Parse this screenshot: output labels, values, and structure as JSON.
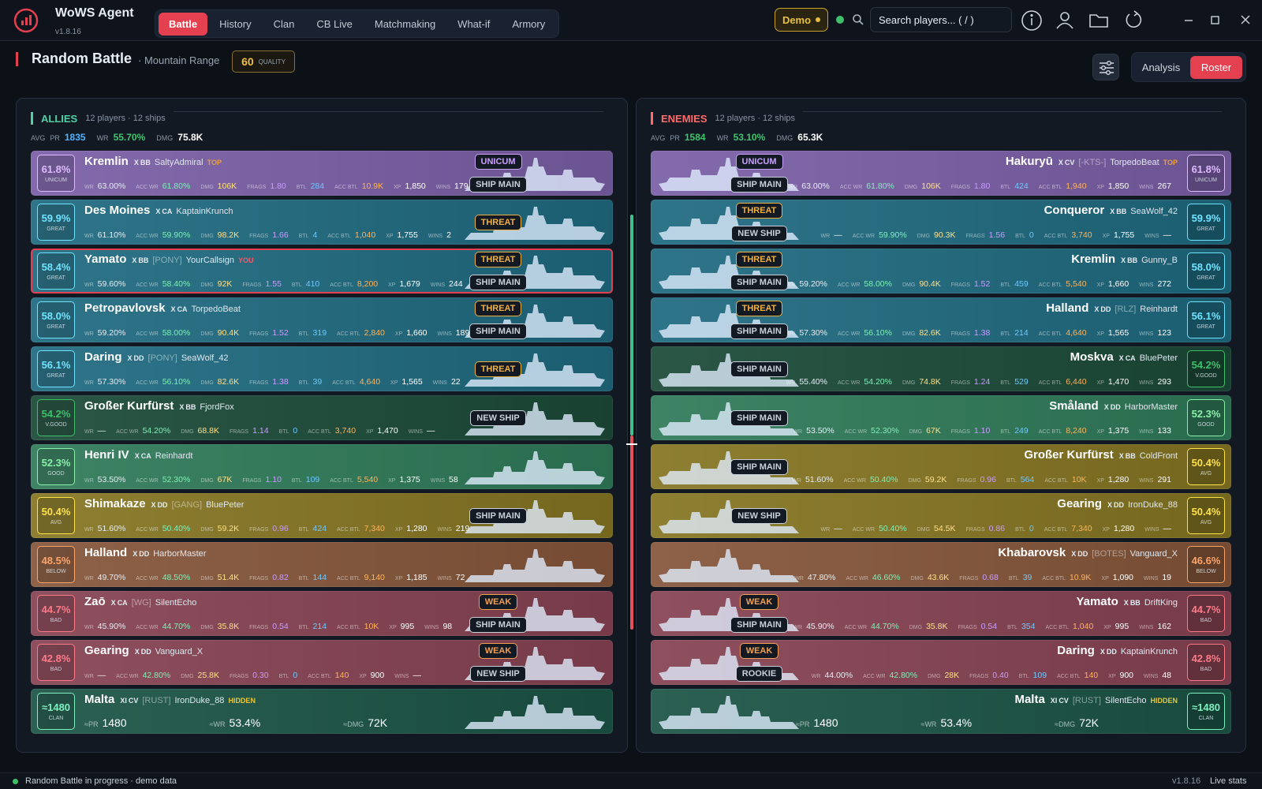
{
  "app": {
    "title": "WoWS Agent",
    "version": "v1.8.16",
    "tabs": [
      "Battle",
      "History",
      "Clan",
      "CB Live",
      "Matchmaking",
      "What-if",
      "Armory"
    ],
    "active_tab": 0,
    "demo": "Demo",
    "search_placeholder": "Search players... ( / )"
  },
  "battle": {
    "mode": "Random Battle",
    "map": "· Mountain Range",
    "quality": 60,
    "quality_label": "QUALITY",
    "views": [
      "Analysis",
      "Roster"
    ],
    "active_view": 1
  },
  "stat_labels": [
    "WR",
    "ACC WR",
    "DMG",
    "FRAGS",
    "BTL",
    "ACC BTL",
    "XP",
    "WINS"
  ],
  "stat_colors": [
    "#e6edf5",
    "#7ff0b8",
    "#ffe08a",
    "#c99cff",
    "#6fc8ff",
    "#ffb35c",
    "#ffffff",
    "#ffffff"
  ],
  "allies": {
    "title": "ALLIES",
    "summary": "12 players · 12 ships",
    "accent": "#4fd1a5",
    "avg_label": "AVG",
    "avg": [
      {
        "label": "PR",
        "value": "1835",
        "color": "#4fb3ff"
      },
      {
        "label": "WR",
        "value": "55.70%",
        "color": "#3fc46f"
      },
      {
        "label": "DMG",
        "value": "75.8K",
        "color": "#ffffff"
      }
    ],
    "rows": [
      {
        "rating": "61.8%",
        "rating_label": "UNICUM",
        "color": "#7a5fa6",
        "accent": "#dcbcff",
        "ship": "Kremlin",
        "tier": "X",
        "class": "BB",
        "player": "SaltyAdmiral",
        "tag": "TOP",
        "tag_color": "#f0a030",
        "stats": [
          "63.00%",
          "61.80%",
          "106K",
          "1.80",
          "284",
          "10.9K",
          "1,850",
          "179"
        ],
        "badges": [
          {
            "text": "UNICUM",
            "color": "#c9a0ff"
          },
          {
            "text": "SHIP MAIN",
            "color": "#c8d0da"
          }
        ]
      },
      {
        "rating": "59.9%",
        "rating_label": "GREAT",
        "color": "#1f6a80",
        "accent": "#6fe3ff",
        "ship": "Des Moines",
        "tier": "X",
        "class": "CA",
        "player": "KaptainKrunch",
        "stats": [
          "61.10%",
          "59.90%",
          "98.2K",
          "1.66",
          "4",
          "1,040",
          "1,755",
          "2"
        ],
        "badges": [
          {
            "text": "THREAT",
            "color": "#f0b040"
          }
        ]
      },
      {
        "rating": "58.4%",
        "rating_label": "GREAT",
        "color": "#1f6a80",
        "accent": "#6fe3ff",
        "ship": "Yamato",
        "tier": "X",
        "class": "BB",
        "clan": "[PONY]",
        "player": "YourCallsign",
        "tag": "YOU",
        "tag_color": "#ff5566",
        "selected": true,
        "stats": [
          "59.60%",
          "58.40%",
          "92K",
          "1.55",
          "410",
          "8,200",
          "1,679",
          "244"
        ],
        "badges": [
          {
            "text": "THREAT",
            "color": "#f0b040"
          },
          {
            "text": "SHIP MAIN",
            "color": "#c8d0da"
          }
        ]
      },
      {
        "rating": "58.0%",
        "rating_label": "GREAT",
        "color": "#1f6a80",
        "accent": "#6fe3ff",
        "ship": "Petropavlovsk",
        "tier": "X",
        "class": "CA",
        "player": "TorpedoBeat",
        "stats": [
          "59.20%",
          "58.00%",
          "90.4K",
          "1.52",
          "319",
          "2,840",
          "1,660",
          "189"
        ],
        "badges": [
          {
            "text": "THREAT",
            "color": "#f0b040"
          },
          {
            "text": "SHIP MAIN",
            "color": "#c8d0da"
          }
        ]
      },
      {
        "rating": "56.1%",
        "rating_label": "GREAT",
        "color": "#1f6a80",
        "accent": "#6fe3ff",
        "ship": "Daring",
        "tier": "X",
        "class": "DD",
        "clan": "[PONY]",
        "player": "SeaWolf_42",
        "stats": [
          "57.30%",
          "56.10%",
          "82.6K",
          "1.38",
          "39",
          "4,640",
          "1,565",
          "22"
        ],
        "badges": [
          {
            "text": "THREAT",
            "color": "#f0b040"
          }
        ]
      },
      {
        "rating": "54.2%",
        "rating_label": "V.GOOD",
        "color": "#1b4a38",
        "accent": "#3fbf6a",
        "ship": "Großer Kurfürst",
        "tier": "X",
        "class": "BB",
        "player": "FjordFox",
        "stats": [
          "—",
          "54.20%",
          "68.8K",
          "1.14",
          "0",
          "3,740",
          "1,470",
          "—"
        ],
        "badges": [
          {
            "text": "NEW SHIP",
            "color": "#c8d0da"
          }
        ]
      },
      {
        "rating": "52.3%",
        "rating_label": "GOOD",
        "color": "#2f7a59",
        "accent": "#8af0a8",
        "ship": "Henri IV",
        "tier": "X",
        "class": "CA",
        "player": "Reinhardt",
        "stats": [
          "53.50%",
          "52.30%",
          "67K",
          "1.10",
          "109",
          "5,540",
          "1,375",
          "58"
        ],
        "badges": []
      },
      {
        "rating": "50.4%",
        "rating_label": "AVG",
        "color": "#857522",
        "accent": "#ffe24a",
        "ship": "Shimakaze",
        "tier": "X",
        "class": "DD",
        "clan": "[GANG]",
        "player": "BluePeter",
        "stats": [
          "51.60%",
          "50.40%",
          "59.2K",
          "0.96",
          "424",
          "7,340",
          "1,280",
          "219"
        ],
        "badges": [
          {
            "text": "SHIP MAIN",
            "color": "#c8d0da"
          }
        ]
      },
      {
        "rating": "48.5%",
        "rating_label": "BELOW",
        "color": "#85563a",
        "accent": "#ffa468",
        "ship": "Halland",
        "tier": "X",
        "class": "DD",
        "player": "HarborMaster",
        "stats": [
          "49.70%",
          "48.50%",
          "51.4K",
          "0.82",
          "144",
          "9,140",
          "1,185",
          "72"
        ],
        "badges": []
      },
      {
        "rating": "44.7%",
        "rating_label": "BAD",
        "color": "#864252",
        "accent": "#ff7a88",
        "ship": "Zaō",
        "tier": "X",
        "class": "CA",
        "clan": "[WG]",
        "player": "SilentEcho",
        "stats": [
          "45.90%",
          "44.70%",
          "35.8K",
          "0.54",
          "214",
          "10K",
          "995",
          "98"
        ],
        "badges": [
          {
            "text": "WEAK",
            "color": "#f0a050"
          },
          {
            "text": "SHIP MAIN",
            "color": "#c8d0da"
          }
        ]
      },
      {
        "rating": "42.8%",
        "rating_label": "BAD",
        "color": "#864252",
        "accent": "#ff7a88",
        "ship": "Gearing",
        "tier": "X",
        "class": "DD",
        "player": "Vanguard_X",
        "stats": [
          "—",
          "42.80%",
          "25.8K",
          "0.30",
          "0",
          "140",
          "900",
          "—"
        ],
        "badges": [
          {
            "text": "WEAK",
            "color": "#f0a050"
          },
          {
            "text": "NEW SHIP",
            "color": "#c8d0da"
          }
        ]
      },
      {
        "rating": "≈1480",
        "rating_label": "CLAN",
        "color": "#1b5446",
        "accent": "#7ff0c0",
        "ship": "Malta",
        "tier": "XI",
        "class": "CV",
        "clan": "[RUST]",
        "player": "IronDuke_88",
        "tag": "HIDDEN",
        "tag_color": "#e8c83a",
        "hidden_stats": [
          {
            "label": "≈PR",
            "value": "1480"
          },
          {
            "label": "≈WR",
            "value": "53.4%"
          },
          {
            "label": "≈DMG",
            "value": "72K"
          }
        ],
        "badges": []
      }
    ]
  },
  "enemies": {
    "title": "ENEMIES",
    "summary": "12 players · 12 ships",
    "accent": "#ff6a6a",
    "avg_label": "AVG",
    "avg": [
      {
        "label": "PR",
        "value": "1584",
        "color": "#3fc46f"
      },
      {
        "label": "WR",
        "value": "53.10%",
        "color": "#3fc46f"
      },
      {
        "label": "DMG",
        "value": "65.3K",
        "color": "#ffffff"
      }
    ],
    "rows": [
      {
        "rating": "61.8%",
        "rating_label": "UNICUM",
        "color": "#7a5fa6",
        "accent": "#dcbcff",
        "ship": "Hakuryū",
        "tier": "X",
        "class": "CV",
        "clan": "[-KTS-]",
        "player": "TorpedoBeat",
        "tag": "TOP",
        "tag_color": "#f0a030",
        "stats": [
          "63.00%",
          "61.80%",
          "106K",
          "1.80",
          "424",
          "1,940",
          "1,850",
          "267"
        ],
        "badges": [
          {
            "text": "UNICUM",
            "color": "#c9a0ff"
          },
          {
            "text": "SHIP MAIN",
            "color": "#c8d0da"
          }
        ]
      },
      {
        "rating": "59.9%",
        "rating_label": "GREAT",
        "color": "#1f6a80",
        "accent": "#6fe3ff",
        "ship": "Conqueror",
        "tier": "X",
        "class": "BB",
        "player": "SeaWolf_42",
        "stats": [
          "—",
          "59.90%",
          "90.3K",
          "1.56",
          "0",
          "3,740",
          "1,755",
          "—"
        ],
        "badges": [
          {
            "text": "THREAT",
            "color": "#f0b040"
          },
          {
            "text": "NEW SHIP",
            "color": "#c8d0da"
          }
        ]
      },
      {
        "rating": "58.0%",
        "rating_label": "GREAT",
        "color": "#1f6a80",
        "accent": "#6fe3ff",
        "ship": "Kremlin",
        "tier": "X",
        "class": "BB",
        "player": "Gunny_B",
        "stats": [
          "59.20%",
          "58.00%",
          "90.4K",
          "1.52",
          "459",
          "5,540",
          "1,660",
          "272"
        ],
        "badges": [
          {
            "text": "THREAT",
            "color": "#f0b040"
          },
          {
            "text": "SHIP MAIN",
            "color": "#c8d0da"
          }
        ]
      },
      {
        "rating": "56.1%",
        "rating_label": "GREAT",
        "color": "#1f6a80",
        "accent": "#6fe3ff",
        "ship": "Halland",
        "tier": "X",
        "class": "DD",
        "clan": "[RLZ]",
        "player": "Reinhardt",
        "stats": [
          "57.30%",
          "56.10%",
          "82.6K",
          "1.38",
          "214",
          "4,640",
          "1,565",
          "123"
        ],
        "badges": [
          {
            "text": "THREAT",
            "color": "#f0b040"
          },
          {
            "text": "SHIP MAIN",
            "color": "#c8d0da"
          }
        ]
      },
      {
        "rating": "54.2%",
        "rating_label": "V.GOOD",
        "color": "#1b4a38",
        "accent": "#3fbf6a",
        "ship": "Moskva",
        "tier": "X",
        "class": "CA",
        "player": "BluePeter",
        "stats": [
          "55.40%",
          "54.20%",
          "74.8K",
          "1.24",
          "529",
          "6,440",
          "1,470",
          "293"
        ],
        "badges": [
          {
            "text": "SHIP MAIN",
            "color": "#c8d0da"
          }
        ]
      },
      {
        "rating": "52.3%",
        "rating_label": "GOOD",
        "color": "#2f7a59",
        "accent": "#8af0a8",
        "ship": "Småland",
        "tier": "X",
        "class": "DD",
        "player": "HarborMaster",
        "stats": [
          "53.50%",
          "52.30%",
          "67K",
          "1.10",
          "249",
          "8,240",
          "1,375",
          "133"
        ],
        "badges": [
          {
            "text": "SHIP MAIN",
            "color": "#c8d0da"
          }
        ]
      },
      {
        "rating": "50.4%",
        "rating_label": "AVG",
        "color": "#857522",
        "accent": "#ffe24a",
        "ship": "Großer Kurfürst",
        "tier": "X",
        "class": "BB",
        "player": "ColdFront",
        "stats": [
          "51.60%",
          "50.40%",
          "59.2K",
          "0.96",
          "564",
          "10K",
          "1,280",
          "291"
        ],
        "badges": [
          {
            "text": "SHIP MAIN",
            "color": "#c8d0da"
          }
        ]
      },
      {
        "rating": "50.4%",
        "rating_label": "AVG",
        "color": "#857522",
        "accent": "#ffe24a",
        "ship": "Gearing",
        "tier": "X",
        "class": "DD",
        "player": "IronDuke_88",
        "stats": [
          "—",
          "50.40%",
          "54.5K",
          "0.86",
          "0",
          "7,340",
          "1,280",
          "—"
        ],
        "badges": [
          {
            "text": "NEW SHIP",
            "color": "#c8d0da"
          }
        ]
      },
      {
        "rating": "46.6%",
        "rating_label": "BELOW",
        "color": "#85563a",
        "accent": "#ffa468",
        "ship": "Khabarovsk",
        "tier": "X",
        "class": "DD",
        "clan": "[BOTES]",
        "player": "Vanguard_X",
        "stats": [
          "47.80%",
          "46.60%",
          "43.6K",
          "0.68",
          "39",
          "10.9K",
          "1,090",
          "19"
        ],
        "badges": []
      },
      {
        "rating": "44.7%",
        "rating_label": "BAD",
        "color": "#864252",
        "accent": "#ff7a88",
        "ship": "Yamato",
        "tier": "X",
        "class": "BB",
        "player": "DriftKing",
        "stats": [
          "45.90%",
          "44.70%",
          "35.8K",
          "0.54",
          "354",
          "1,040",
          "995",
          "162"
        ],
        "badges": [
          {
            "text": "WEAK",
            "color": "#f0a050"
          },
          {
            "text": "SHIP MAIN",
            "color": "#c8d0da"
          }
        ]
      },
      {
        "rating": "42.8%",
        "rating_label": "BAD",
        "color": "#864252",
        "accent": "#ff7a88",
        "ship": "Daring",
        "tier": "X",
        "class": "DD",
        "player": "KaptainKrunch",
        "stats": [
          "44.00%",
          "42.80%",
          "28K",
          "0.40",
          "109",
          "140",
          "900",
          "48"
        ],
        "badges": [
          {
            "text": "WEAK",
            "color": "#f0a050"
          },
          {
            "text": "ROOKIE",
            "color": "#c8d0da"
          }
        ]
      },
      {
        "rating": "≈1480",
        "rating_label": "CLAN",
        "color": "#1b5446",
        "accent": "#7ff0c0",
        "ship": "Malta",
        "tier": "XI",
        "class": "CV",
        "clan": "[RUST]",
        "player": "SilentEcho",
        "tag": "HIDDEN",
        "tag_color": "#e8c83a",
        "hidden_stats": [
          {
            "label": "≈PR",
            "value": "1480"
          },
          {
            "label": "≈WR",
            "value": "53.4%"
          },
          {
            "label": "≈DMG",
            "value": "72K"
          }
        ],
        "badges": []
      }
    ]
  },
  "footer": {
    "status": "Random Battle in progress · demo data",
    "version": "v1.8.16",
    "live": "Live stats"
  }
}
